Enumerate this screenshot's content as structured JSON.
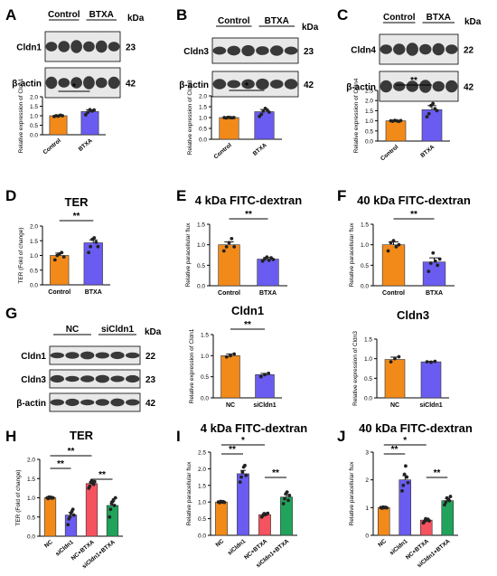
{
  "colors": {
    "orange": "#f28a1a",
    "blue": "#6a5cf0",
    "red": "#f4535f",
    "green": "#21a35b",
    "blot_bg": "#e8e8e8",
    "band": "#1a1a1a"
  },
  "units": {
    "kda": "kDa"
  },
  "blots": [
    {
      "letter": "A",
      "groups": [
        "Control",
        "BTXA"
      ],
      "rows": [
        {
          "label": "Cldn1",
          "kda": "23"
        },
        {
          "label": "β-actin",
          "kda": "42"
        }
      ]
    },
    {
      "letter": "B",
      "groups": [
        "Control",
        "BTXA"
      ],
      "rows": [
        {
          "label": "Cldn3",
          "kda": "23"
        },
        {
          "label": "β-actin",
          "kda": "42"
        }
      ]
    },
    {
      "letter": "C",
      "groups": [
        "Control",
        "BTXA"
      ],
      "rows": [
        {
          "label": "Cldn4",
          "kda": "22"
        },
        {
          "label": "β-actin",
          "kda": "42"
        }
      ]
    },
    {
      "letter": "G",
      "groups": [
        "NC",
        "siCldn1"
      ],
      "rows": [
        {
          "label": "Cldn1",
          "kda": "22"
        },
        {
          "label": "Cldn3",
          "kda": "23"
        },
        {
          "label": "β-actin",
          "kda": "42"
        }
      ]
    }
  ],
  "chart_data": [
    {
      "id": "A",
      "type": "bar",
      "ylabel": "Relative expression of Cldn1",
      "categories": [
        "Control",
        "BTXA"
      ],
      "values": [
        1.0,
        1.22
      ],
      "errors": [
        0.04,
        0.09
      ],
      "ylim": [
        0,
        2.0
      ],
      "yticks": [
        0,
        0.5,
        1.0,
        1.5,
        2.0
      ],
      "significance": [
        "*"
      ],
      "points": [
        [
          0.96,
          1.0,
          0.98,
          1.03,
          1.0
        ],
        [
          1.05,
          1.18,
          1.32,
          1.25,
          1.3
        ]
      ]
    },
    {
      "id": "B",
      "type": "bar",
      "ylabel": "Relative expression of Cldn3",
      "categories": [
        "Control",
        "BTXA"
      ],
      "values": [
        1.0,
        1.27
      ],
      "errors": [
        0.02,
        0.1
      ],
      "ylim": [
        0,
        2.0
      ],
      "yticks": [
        0,
        0.5,
        1.0,
        1.5,
        2.0
      ],
      "significance": [
        "*"
      ],
      "points": [
        [
          1.0,
          0.98,
          1.01,
          1.0,
          0.99,
          1.0
        ],
        [
          1.05,
          1.15,
          1.3,
          1.42,
          1.35,
          1.25
        ]
      ]
    },
    {
      "id": "C",
      "type": "bar",
      "ylabel": "Relative expression of Cldn4",
      "categories": [
        "Control",
        "BTXA"
      ],
      "values": [
        1.0,
        1.55
      ],
      "errors": [
        0.03,
        0.2
      ],
      "ylim": [
        0,
        2.5
      ],
      "yticks": [
        0,
        0.5,
        1.0,
        1.5,
        2.0,
        2.5
      ],
      "significance": [
        "**"
      ],
      "points": [
        [
          1.0,
          0.98,
          1.02,
          1.0,
          0.97,
          1.01
        ],
        [
          1.2,
          1.35,
          1.75,
          1.85,
          1.6,
          1.5
        ]
      ]
    },
    {
      "id": "D",
      "type": "bar",
      "title": "TER",
      "ylabel": "TER (Fold of change)",
      "categories": [
        "Control",
        "BTXA"
      ],
      "values": [
        1.0,
        1.43
      ],
      "errors": [
        0.08,
        0.1
      ],
      "ylim": [
        0,
        2.0
      ],
      "yticks": [
        0.0,
        0.5,
        1.0,
        1.5,
        2.0
      ],
      "significance": [
        "**"
      ],
      "points": [
        [
          0.85,
          1.0,
          1.05,
          1.1,
          0.95
        ],
        [
          1.1,
          1.3,
          1.55,
          1.6,
          1.45,
          1.3
        ]
      ]
    },
    {
      "id": "E",
      "type": "bar",
      "title": "4 kDa FITC-dextran",
      "ylabel": "Relative paracellular flux",
      "categories": [
        "Control",
        "BTXA"
      ],
      "values": [
        1.0,
        0.65
      ],
      "errors": [
        0.07,
        0.04
      ],
      "ylim": [
        0,
        1.5
      ],
      "yticks": [
        0.0,
        0.5,
        1.0,
        1.5
      ],
      "significance": [
        "**"
      ],
      "points": [
        [
          0.85,
          0.95,
          1.05,
          1.15,
          0.95
        ],
        [
          0.6,
          0.65,
          0.7,
          0.62,
          0.68,
          0.64
        ]
      ]
    },
    {
      "id": "F",
      "type": "bar",
      "title": "40 kDa FITC-dextran",
      "ylabel": "Relative paracellular flux",
      "categories": [
        "Control",
        "BTXA"
      ],
      "values": [
        1.0,
        0.58
      ],
      "errors": [
        0.07,
        0.1
      ],
      "ylim": [
        0,
        1.5
      ],
      "yticks": [
        0.0,
        0.5,
        1.0,
        1.5
      ],
      "significance": [
        "**"
      ],
      "points": [
        [
          0.85,
          1.05,
          1.1,
          0.95,
          1.0
        ],
        [
          0.35,
          0.55,
          0.8,
          0.6,
          0.5,
          0.65
        ]
      ]
    },
    {
      "id": "G1",
      "type": "bar",
      "title": "Cldn1",
      "ylabel": "Relative expression of Cldn1",
      "categories": [
        "NC",
        "siCldn1"
      ],
      "values": [
        1.0,
        0.55
      ],
      "errors": [
        0.04,
        0.03
      ],
      "ylim": [
        0,
        1.5
      ],
      "yticks": [
        0.0,
        0.5,
        1.0,
        1.5
      ],
      "significance": [
        "**"
      ],
      "points": [
        [
          0.97,
          1.0,
          1.04
        ],
        [
          0.5,
          0.55,
          0.58
        ]
      ]
    },
    {
      "id": "G2",
      "type": "bar",
      "title": "Cldn3",
      "ylabel": "Relative expression of Cldn3",
      "categories": [
        "NC",
        "siCldn1"
      ],
      "values": [
        0.98,
        0.92
      ],
      "errors": [
        0.06,
        0.01
      ],
      "ylim": [
        0,
        1.5
      ],
      "yticks": [
        0.0,
        0.5,
        1.0,
        1.5
      ],
      "significance": [],
      "points": [
        [
          0.92,
          1.0,
          1.05
        ],
        [
          0.92,
          0.91,
          0.93
        ]
      ]
    },
    {
      "id": "H",
      "type": "bar",
      "title": "TER",
      "ylabel": "TER (Fold of change)",
      "categories": [
        "NC",
        "siCldn1",
        "NC+BTXA",
        "siCldn1+BTXA"
      ],
      "values": [
        1.0,
        0.55,
        1.37,
        0.8
      ],
      "errors": [
        0.02,
        0.07,
        0.05,
        0.1
      ],
      "ylim": [
        0,
        2.0
      ],
      "yticks": [
        0.0,
        0.5,
        1.0,
        1.5,
        2.0
      ],
      "significance": [
        "**",
        "**",
        "**"
      ],
      "points": [
        [
          1.0,
          0.98,
          1.02,
          1.0,
          1.01,
          0.99,
          1.0
        ],
        [
          0.3,
          0.45,
          0.5,
          0.6,
          0.65,
          0.7,
          0.55
        ],
        [
          1.25,
          1.3,
          1.4,
          1.45,
          1.38,
          1.35,
          1.42
        ],
        [
          0.5,
          0.7,
          0.85,
          0.9,
          0.95,
          0.8,
          1.0
        ]
      ]
    },
    {
      "id": "I",
      "type": "bar",
      "title": "4 kDa FITC-dextran",
      "ylabel": "Relative paracellular flux",
      "categories": [
        "NC",
        "siCldn1",
        "NC+BTXA",
        "siCldn1+BTXA"
      ],
      "values": [
        1.0,
        1.85,
        0.62,
        1.15
      ],
      "errors": [
        0.02,
        0.1,
        0.03,
        0.07
      ],
      "ylim": [
        0,
        2.5
      ],
      "yticks": [
        0.0,
        0.5,
        1.0,
        1.5,
        2.0,
        2.5
      ],
      "significance": [
        "**",
        "*",
        "**"
      ],
      "points": [
        [
          1.0,
          0.98,
          1.02,
          1.0,
          1.01,
          0.99
        ],
        [
          1.6,
          1.75,
          1.9,
          2.05,
          2.1,
          1.8
        ],
        [
          0.55,
          0.6,
          0.65,
          0.62,
          0.64,
          0.66
        ],
        [
          0.95,
          1.1,
          1.25,
          1.3,
          1.05,
          1.2
        ]
      ]
    },
    {
      "id": "J",
      "type": "bar",
      "title": "40 kDa FITC-dextran",
      "ylabel": "Relative paracellular flux",
      "categories": [
        "NC",
        "siCldn1",
        "NC+BTXA",
        "siCldn1+BTXA"
      ],
      "values": [
        1.0,
        2.0,
        0.55,
        1.25
      ],
      "errors": [
        0.02,
        0.15,
        0.03,
        0.07
      ],
      "ylim": [
        0,
        3
      ],
      "yticks": [
        0,
        1,
        2,
        3
      ],
      "significance": [
        "**",
        "*",
        "**"
      ],
      "points": [
        [
          1.0,
          0.98,
          1.02,
          1.0,
          1.01,
          0.99
        ],
        [
          1.6,
          1.8,
          2.2,
          2.5,
          2.1,
          1.9
        ],
        [
          0.45,
          0.5,
          0.6,
          0.55,
          0.58,
          0.52
        ],
        [
          1.1,
          1.2,
          1.35,
          1.3,
          1.25,
          1.4
        ]
      ]
    }
  ]
}
